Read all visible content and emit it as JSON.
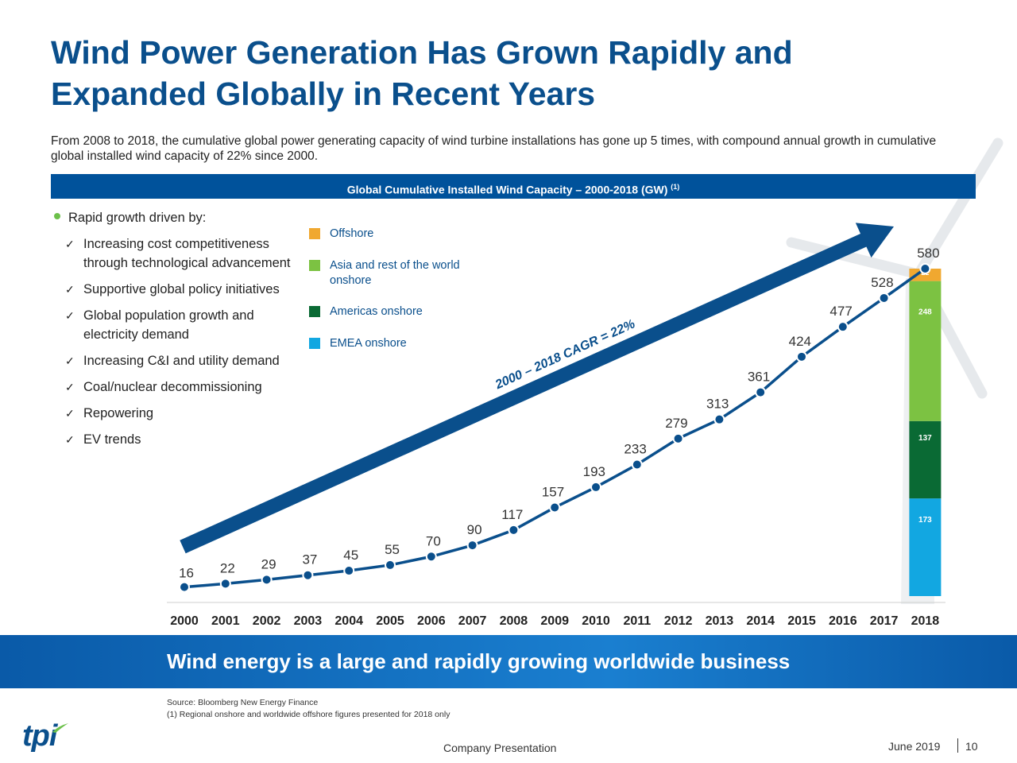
{
  "title_line1": "Wind Power Generation Has Grown Rapidly and",
  "title_line2": "Expanded Globally in Recent Years",
  "subtitle": "From 2008 to 2018, the cumulative global power generating capacity of wind turbine installations has gone up 5 times, with compound annual growth in cumulative global installed wind capacity of 22% since 2000.",
  "banner": {
    "text": "Global Cumulative Installed Wind Capacity – 2000-2018 (GW)",
    "footnote": "(1)"
  },
  "drivers": {
    "heading": "Rapid growth driven by:",
    "check": "✓",
    "items": [
      "Increasing cost competitiveness through technological advancement",
      "Supportive global policy initiatives",
      "Global population growth and electricity demand",
      "Increasing C&I and utility demand",
      "Coal/nuclear decommissioning",
      "Repowering",
      "EV trends"
    ]
  },
  "chart_data": {
    "type": "line",
    "x": [
      "2000",
      "2001",
      "2002",
      "2003",
      "2004",
      "2005",
      "2006",
      "2007",
      "2008",
      "2009",
      "2010",
      "2011",
      "2012",
      "2013",
      "2014",
      "2015",
      "2016",
      "2017",
      "2018"
    ],
    "series": [
      {
        "values": [
          16,
          22,
          29,
          37,
          45,
          55,
          70,
          90,
          117,
          157,
          193,
          233,
          279,
          313,
          361,
          424,
          477,
          528,
          580
        ]
      }
    ],
    "line_color": "#0a4f8c",
    "arrow_label": "2000 – 2018 CAGR = 22%",
    "stacked_2018": {
      "type": "bar",
      "category": "2018",
      "segments": [
        {
          "name": "EMEA onshore",
          "value": 173,
          "color": "#12a7e1"
        },
        {
          "name": "Americas onshore",
          "value": 137,
          "color": "#0a6a34"
        },
        {
          "name": "Asia and rest of the world onshore",
          "value": 248,
          "color": "#7cc242"
        },
        {
          "name": "Offshore",
          "value": 22,
          "color": "#f0a830"
        }
      ]
    },
    "legend_placement": "top-left",
    "grid": false
  },
  "bottom_banner": "Wind energy is a large and rapidly growing worldwide business",
  "source": "Source: Bloomberg New Energy Finance",
  "footnote": "(1)  Regional onshore and worldwide offshore figures presented for 2018 only",
  "logo": "tpi",
  "footer": {
    "center": "Company Presentation",
    "date": "June 2019",
    "page": "10"
  }
}
